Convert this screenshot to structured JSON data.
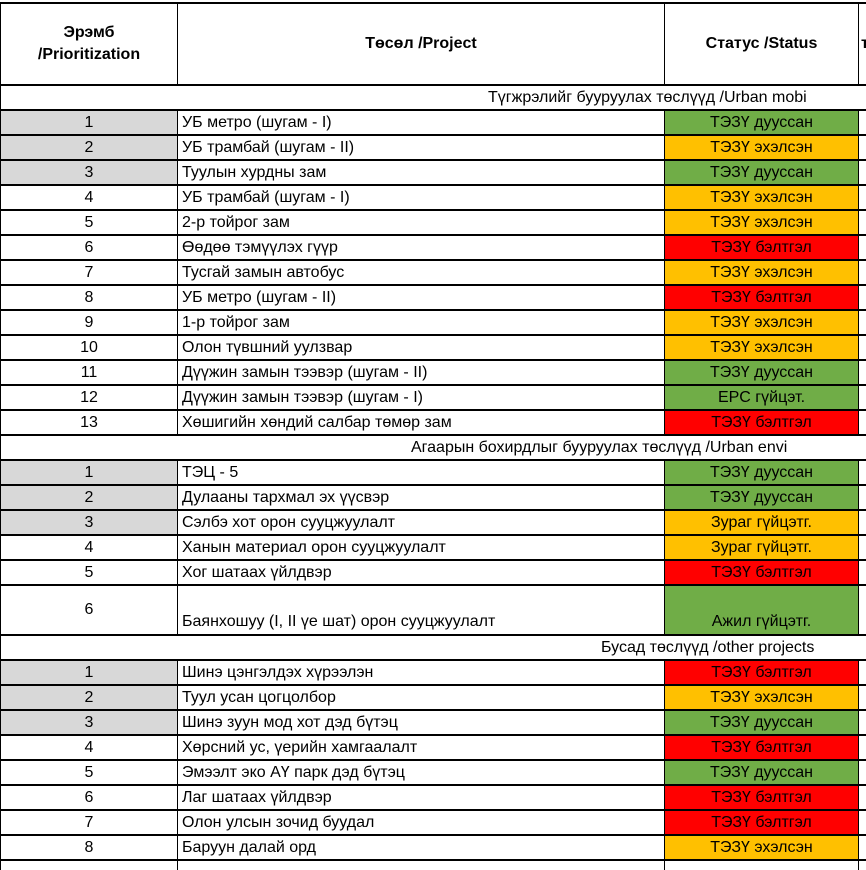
{
  "table": {
    "columns": [
      {
        "label": "Эрэмб\n/Prioritization"
      },
      {
        "label": "Төсөл /Project"
      },
      {
        "label": "Статус /Status"
      },
      {
        "label": "т"
      }
    ],
    "status_colors": {
      "green": "#70AD47",
      "orange": "#FFC000",
      "red": "#FF0000"
    },
    "row_number_highlight": "#D8D8D8",
    "sections": [
      {
        "title": "Түгжрэлийг бууруулах төслүүд /Urban mobi",
        "rows": [
          {
            "num": "1",
            "project": "УБ метро (шугам - I)",
            "status": "ТЭЗҮ дууссан",
            "color": "green",
            "gray": true
          },
          {
            "num": "2",
            "project": "УБ трамбай (шугам - II)",
            "status": "ТЭЗҮ эхэлсэн",
            "color": "orange",
            "gray": true
          },
          {
            "num": "3",
            "project": "Туулын хурдны зам",
            "status": "ТЭЗҮ дууссан",
            "color": "green",
            "gray": true
          },
          {
            "num": "4",
            "project": "УБ трамбай (шугам - I)",
            "status": "ТЭЗҮ эхэлсэн",
            "color": "orange",
            "gray": false
          },
          {
            "num": "5",
            "project": "2-р тойрог зам",
            "status": "ТЭЗҮ эхэлсэн",
            "color": "orange",
            "gray": false
          },
          {
            "num": "6",
            "project": "Өөдөө тэмүүлэх гүүр",
            "status": "ТЭЗҮ бэлтгэл",
            "color": "red",
            "gray": false
          },
          {
            "num": "7",
            "project": "Тусгай замын автобус",
            "status": "ТЭЗҮ эхэлсэн",
            "color": "orange",
            "gray": false
          },
          {
            "num": "8",
            "project": "УБ метро (шугам - II)",
            "status": "ТЭЗҮ бэлтгэл",
            "color": "red",
            "gray": false
          },
          {
            "num": "9",
            "project": "1-р тойрог зам",
            "status": "ТЭЗҮ эхэлсэн",
            "color": "orange",
            "gray": false
          },
          {
            "num": "10",
            "project": "Олон түвшний уулзвар",
            "status": "ТЭЗҮ эхэлсэн",
            "color": "orange",
            "gray": false
          },
          {
            "num": "11",
            "project": "Дүүжин замын тээвэр (шугам - II)",
            "status": "ТЭЗҮ дууссан",
            "color": "green",
            "gray": false
          },
          {
            "num": "12",
            "project": "Дүүжин замын тээвэр (шугам - I)",
            "status": "EPC гүйцэт.",
            "color": "green",
            "gray": false
          },
          {
            "num": "13",
            "project": "Хөшигийн хөндий салбар төмөр зам",
            "status": "ТЭЗҮ бэлтгэл",
            "color": "red",
            "gray": false
          }
        ]
      },
      {
        "title": "Агаарын бохирдлыг бууруулах төслүүд /Urban envi",
        "rows": [
          {
            "num": "1",
            "project": "ТЭЦ - 5",
            "status": "ТЭЗҮ дууссан",
            "color": "green",
            "gray": true
          },
          {
            "num": "2",
            "project": "Дулааны тархмал эх үүсвэр",
            "status": "ТЭЗҮ дууссан",
            "color": "green",
            "gray": true
          },
          {
            "num": "3",
            "project": "Сэлбэ хот орон сууцжуулалт",
            "status": "Зураг гүйцэтг.",
            "color": "orange",
            "gray": true
          },
          {
            "num": "4",
            "project": "Ханын материал орон сууцжуулалт",
            "status": "Зураг гүйцэтг.",
            "color": "orange",
            "gray": false
          },
          {
            "num": "5",
            "project": "Хог шатаах үйлдвэр",
            "status": "ТЭЗҮ бэлтгэл",
            "color": "red",
            "gray": false
          },
          {
            "num": "6",
            "project": "Баянхошуу (I, II үе шат) орон сууцжуулалт",
            "status": "Ажил гүйцэтг.",
            "color": "green",
            "gray": false,
            "tall": true
          }
        ]
      },
      {
        "title": "Бусад төслүүд /other projects",
        "rows": [
          {
            "num": "1",
            "project": "Шинэ цэнгэлдэх хүрээлэн",
            "status": "ТЭЗҮ бэлтгэл",
            "color": "red",
            "gray": true
          },
          {
            "num": "2",
            "project": "Туул усан цогцолбор",
            "status": "ТЭЗҮ эхэлсэн",
            "color": "orange",
            "gray": true
          },
          {
            "num": "3",
            "project": "Шинэ зуун мод хот дэд бүтэц",
            "status": "ТЭЗҮ дууссан",
            "color": "green",
            "gray": true
          },
          {
            "num": "4",
            "project": "Хөрсний ус, үерийн хамгаалалт",
            "status": "ТЭЗҮ бэлтгэл",
            "color": "red",
            "gray": false
          },
          {
            "num": "5",
            "project": "Эмээлт эко АҮ парк дэд бүтэц",
            "status": "ТЭЗҮ дууссан",
            "color": "green",
            "gray": false
          },
          {
            "num": "6",
            "project": "Лаг шатаах үйлдвэр",
            "status": "ТЭЗҮ бэлтгэл",
            "color": "red",
            "gray": false
          },
          {
            "num": "7",
            "project": "Олон улсын зочид буудал",
            "status": "ТЭЗҮ бэлтгэл",
            "color": "red",
            "gray": false
          },
          {
            "num": "8",
            "project": "Баруун далай орд",
            "status": "ТЭЗҮ эхэлсэн",
            "color": "orange",
            "gray": false
          }
        ]
      }
    ]
  }
}
